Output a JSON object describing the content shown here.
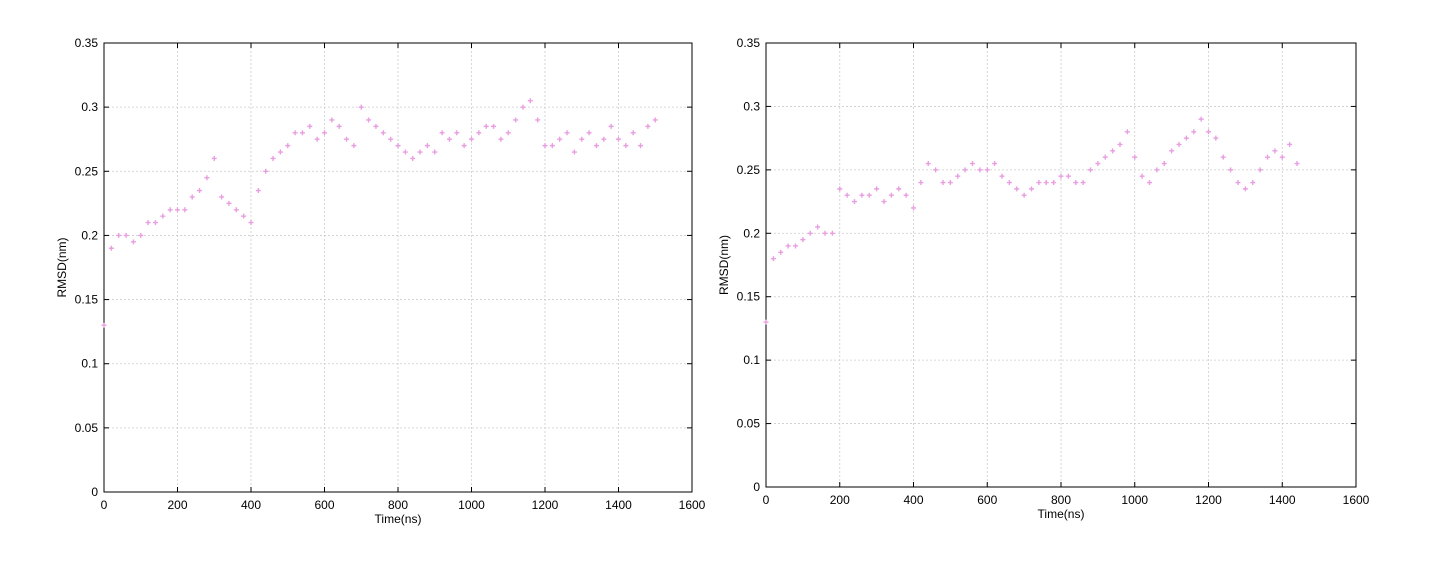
{
  "chart_data": [
    {
      "type": "scatter",
      "x_label": "Time(ns)",
      "y_label": "RMSD(nm)",
      "color": "#e89ee0",
      "grid": true,
      "xlim": [
        0,
        1600
      ],
      "xticks": [
        0,
        200,
        400,
        600,
        800,
        1000,
        1200,
        1400,
        1600
      ],
      "ylim": [
        0,
        0.35
      ],
      "yticks": [
        0,
        0.05,
        0.1,
        0.15,
        0.2,
        0.25,
        0.3,
        0.35
      ],
      "x": [
        0,
        20,
        40,
        60,
        80,
        100,
        120,
        140,
        160,
        180,
        200,
        220,
        240,
        260,
        280,
        300,
        320,
        340,
        360,
        380,
        400,
        420,
        440,
        460,
        480,
        500,
        520,
        540,
        560,
        580,
        600,
        620,
        640,
        660,
        680,
        700,
        720,
        740,
        760,
        780,
        800,
        820,
        840,
        860,
        880,
        900,
        920,
        940,
        960,
        980,
        1000,
        1020,
        1040,
        1060,
        1080,
        1100,
        1120,
        1140,
        1160,
        1180,
        1200,
        1220,
        1240,
        1260,
        1280,
        1300,
        1320,
        1340,
        1360,
        1380,
        1400,
        1420,
        1440,
        1460,
        1480,
        1500
      ],
      "values": [
        0.13,
        0.19,
        0.2,
        0.2,
        0.195,
        0.2,
        0.21,
        0.21,
        0.215,
        0.22,
        0.22,
        0.22,
        0.23,
        0.235,
        0.245,
        0.26,
        0.23,
        0.225,
        0.22,
        0.215,
        0.21,
        0.235,
        0.25,
        0.26,
        0.265,
        0.27,
        0.28,
        0.28,
        0.285,
        0.275,
        0.28,
        0.29,
        0.285,
        0.275,
        0.27,
        0.3,
        0.29,
        0.285,
        0.28,
        0.275,
        0.27,
        0.265,
        0.26,
        0.265,
        0.27,
        0.265,
        0.28,
        0.275,
        0.28,
        0.27,
        0.275,
        0.28,
        0.285,
        0.285,
        0.275,
        0.28,
        0.29,
        0.3,
        0.305,
        0.29,
        0.27,
        0.27,
        0.275,
        0.28,
        0.265,
        0.275,
        0.28,
        0.27,
        0.275,
        0.285,
        0.275,
        0.27,
        0.28,
        0.27,
        0.285,
        0.29
      ]
    },
    {
      "type": "scatter",
      "x_label": "Time(ns)",
      "y_label": "RMSD(nm)",
      "color": "#e89ee0",
      "grid": true,
      "xlim": [
        0,
        1600
      ],
      "xticks": [
        0,
        200,
        400,
        600,
        800,
        1000,
        1200,
        1400,
        1600
      ],
      "ylim": [
        0,
        0.35
      ],
      "yticks": [
        0,
        0.05,
        0.1,
        0.15,
        0.2,
        0.25,
        0.3,
        0.35
      ],
      "x": [
        0,
        20,
        40,
        60,
        80,
        100,
        120,
        140,
        160,
        180,
        200,
        220,
        240,
        260,
        280,
        300,
        320,
        340,
        360,
        380,
        400,
        420,
        440,
        460,
        480,
        500,
        520,
        540,
        560,
        580,
        600,
        620,
        640,
        660,
        680,
        700,
        720,
        740,
        760,
        780,
        800,
        820,
        840,
        860,
        880,
        900,
        920,
        940,
        960,
        980,
        1000,
        1020,
        1040,
        1060,
        1080,
        1100,
        1120,
        1140,
        1160,
        1180,
        1200,
        1220,
        1240,
        1260,
        1280,
        1300,
        1320,
        1340,
        1360,
        1380,
        1400,
        1420,
        1440
      ],
      "values": [
        0.13,
        0.18,
        0.185,
        0.19,
        0.19,
        0.195,
        0.2,
        0.205,
        0.2,
        0.2,
        0.235,
        0.23,
        0.225,
        0.23,
        0.23,
        0.235,
        0.225,
        0.23,
        0.235,
        0.23,
        0.22,
        0.24,
        0.255,
        0.25,
        0.24,
        0.24,
        0.245,
        0.25,
        0.255,
        0.25,
        0.25,
        0.255,
        0.245,
        0.24,
        0.235,
        0.23,
        0.235,
        0.24,
        0.24,
        0.24,
        0.245,
        0.245,
        0.24,
        0.24,
        0.25,
        0.255,
        0.26,
        0.265,
        0.27,
        0.28,
        0.26,
        0.245,
        0.24,
        0.25,
        0.255,
        0.265,
        0.27,
        0.275,
        0.28,
        0.29,
        0.28,
        0.275,
        0.26,
        0.25,
        0.24,
        0.235,
        0.24,
        0.25,
        0.26,
        0.265,
        0.26,
        0.27,
        0.255
      ]
    }
  ]
}
